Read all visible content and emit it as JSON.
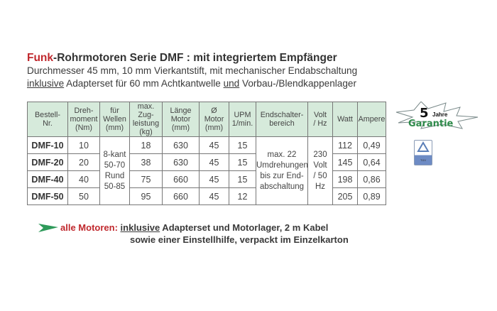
{
  "title": {
    "highlight": "Funk",
    "main": "-Rohrmotoren Serie DMF :",
    "rest": " mit integriertem Empfänger"
  },
  "subtitle1": "Durchmesser 45 mm, 10 mm Vierkantstift, mit mechanischer Endabschaltung",
  "subtitle2": {
    "u1": "inklusive",
    "t1": " Adapterset für 60 mm Achtkantwelle ",
    "u2": "und",
    "t2": " Vorbau-/Blendkappenlager"
  },
  "table": {
    "headers": [
      "Bestell-\nNr.",
      "Dreh-\nmoment\n(Nm)",
      "für\nWellen\n(mm)",
      "max. Zug-\nleistung\n(kg)",
      "Länge\nMotor\n(mm)",
      "Ø\nMotor\n(mm)",
      "UPM\n1/min.",
      "Endschalter-\nbereich",
      "Volt\n/ Hz",
      "Watt",
      "Ampere"
    ],
    "rows": [
      {
        "id": "DMF-10",
        "nm": "10",
        "kg": "18",
        "len": "630",
        "dia": "45",
        "upm": "15",
        "watt": "112",
        "amp": "0,49"
      },
      {
        "id": "DMF-20",
        "nm": "20",
        "kg": "38",
        "len": "630",
        "dia": "45",
        "upm": "15",
        "watt": "145",
        "amp": "0,64"
      },
      {
        "id": "DMF-40",
        "nm": "40",
        "kg": "75",
        "len": "660",
        "dia": "45",
        "upm": "15",
        "watt": "198",
        "amp": "0,86"
      },
      {
        "id": "DMF-50",
        "nm": "50",
        "kg": "95",
        "len": "660",
        "dia": "45",
        "upm": "12",
        "watt": "205",
        "amp": "0,89"
      }
    ],
    "wellen": "8-kant\n50-70\nRund\n50-85",
    "endschalter": "max. 22\nUmdrehungen\nbis zur End-\nabschaltung",
    "volt": "230\nVolt\n/ 50\nHz",
    "header_bg": "#d6eadb"
  },
  "footer": {
    "label": "alle Motoren:",
    "u": "inklusive",
    "line1": " Adapterset und Motorlager, 2 m Kabel",
    "line2": "sowie einer Einstellhilfe, verpackt im Einzelkarton",
    "arrow_color": "#2e9a5a"
  },
  "badge": {
    "number": "5",
    "jahre": "Jahre",
    "garantie": "Garantie",
    "tuv": "TÜV"
  }
}
